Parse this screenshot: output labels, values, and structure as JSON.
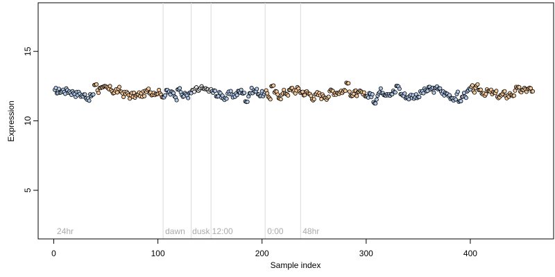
{
  "chart_data": {
    "type": "scatter",
    "title": "",
    "xlabel": "Sample index",
    "ylabel": "Expression",
    "xlim": [
      -15,
      480
    ],
    "ylim": [
      1.5,
      18.5
    ],
    "xticks": [
      0,
      100,
      200,
      300,
      400
    ],
    "yticks": [
      5,
      10,
      15
    ],
    "grid": false,
    "legend": "none",
    "n_points": 460,
    "baseline": 12.0,
    "colors": {
      "point_outline": "#000000",
      "divider": "#d9d9d9",
      "group_label": "#aaaaaa",
      "blue_group": "#aec7e8",
      "orange_group": "#f5c89a",
      "light_group": "#e6e6e6"
    },
    "group_labels": [
      {
        "text": "24hr",
        "x": 3
      },
      {
        "text": "dawn",
        "x": 107
      },
      {
        "text": "dusk",
        "x": 133
      },
      {
        "text": "12:00",
        "x": 152
      },
      {
        "text": "0:00",
        "x": 205
      },
      {
        "text": "48hr",
        "x": 239
      }
    ],
    "dividers": [
      105,
      132,
      151,
      203,
      237
    ],
    "color_segments": [
      {
        "start": 1,
        "end": 38,
        "color": "#aec7e8"
      },
      {
        "start": 39,
        "end": 105,
        "color": "#f5c89a"
      },
      {
        "start": 106,
        "end": 132,
        "color": "#aec7e8"
      },
      {
        "start": 133,
        "end": 151,
        "color": "#e6e6e6"
      },
      {
        "start": 152,
        "end": 203,
        "color": "#aec7e8"
      },
      {
        "start": 204,
        "end": 237,
        "color": "#f5c89a"
      },
      {
        "start": 238,
        "end": 300,
        "color": "#f5c89a"
      },
      {
        "start": 301,
        "end": 400,
        "color": "#aec7e8"
      },
      {
        "start": 401,
        "end": 460,
        "color": "#f5c89a"
      }
    ],
    "features": [
      {
        "x": 40,
        "y": 12.6
      },
      {
        "x": 45,
        "y": 12.4
      },
      {
        "x": 105,
        "y": 11.7
      },
      {
        "x": 120,
        "y": 12.3
      },
      {
        "x": 145,
        "y": 12.3
      },
      {
        "x": 185,
        "y": 11.4
      },
      {
        "x": 210,
        "y": 12.5
      },
      {
        "x": 282,
        "y": 12.7
      },
      {
        "x": 300,
        "y": 11.8
      },
      {
        "x": 308,
        "y": 11.3
      },
      {
        "x": 330,
        "y": 12.5
      },
      {
        "x": 370,
        "y": 12.3
      },
      {
        "x": 390,
        "y": 11.4
      },
      {
        "x": 445,
        "y": 12.4
      },
      {
        "x": 460,
        "y": 12.1
      }
    ]
  }
}
